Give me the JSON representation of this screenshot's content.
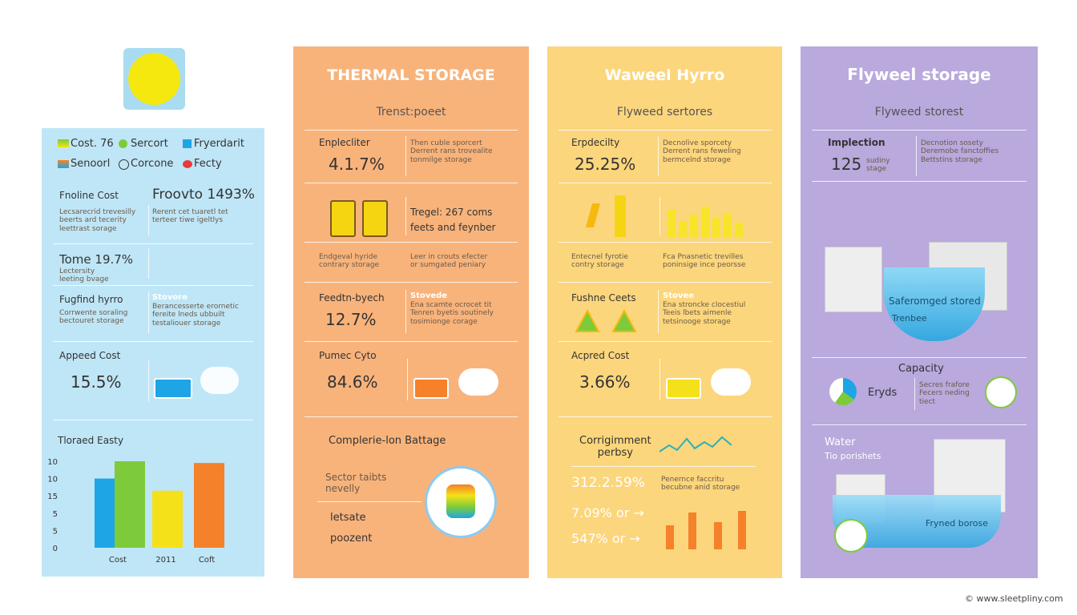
{
  "icon_panel": {},
  "panel_1": {
    "legend": [
      "Cost. 76",
      "Sercort",
      "Fryerdarit",
      "Senoorl",
      "Corcone",
      "Fecty"
    ],
    "row_1": {
      "label": "Fnoline Cost",
      "value": "Froovto 1493%",
      "note_left": "Lecsarecrid trevesilly\nbeerts ard tecerity\nleettrast sorage",
      "note_right": "Rerent cet tuaretl tet\nterteer tiwe igeltlys"
    },
    "row_2": {
      "label": "Tome 19.7%",
      "note": "Lectersity\nleeting bvage"
    },
    "row_3": {
      "label": "Fugfind hyrro",
      "title_right": "Stovore",
      "note_left": "Corrwente soraling\nbectouret storage",
      "note_right": "Berancesserte erornetic\nfereite lneds ubbuilt\ntestaliouer storage"
    },
    "row_4": {
      "label": "Appeed Cost",
      "value": "15.5%"
    },
    "chart": {
      "type": "bar",
      "title": "Tloraed Easty",
      "categories": [
        "Cost",
        null,
        "2011",
        "Coft"
      ],
      "values": [
        4.0,
        5.0,
        3.3,
        4.9
      ],
      "colors": [
        "#1ea5e6",
        "#7dcb3a",
        "#f5e11a",
        "#f5812a"
      ],
      "ylim": [
        0,
        5
      ],
      "yticks": [
        {
          "value": 0,
          "label": "0"
        },
        {
          "value": 1,
          "label": "5"
        },
        {
          "value": 2,
          "label": "5"
        },
        {
          "value": 3,
          "label": "15"
        },
        {
          "value": 4,
          "label": "10"
        },
        {
          "value": 5,
          "label": "10"
        }
      ]
    }
  },
  "panel_2": {
    "title": "THERMAL STORAGE",
    "subtitle": "Trenst:poeet",
    "row_1": {
      "label": "Enplecliter",
      "value": "4.1.7%",
      "note": "Then cuble sporcert\nDerrent rans trovealite\ntonmilge storage"
    },
    "row_2": {
      "note": "Tregel: 267 coms\nfeets and feynber"
    },
    "row_3": {
      "note_left": "Endgeval hyride\ncontrary storage",
      "note_right": "Leer in crouts efecter\nor sumgated peniary"
    },
    "row_4": {
      "label": "Feedtn-byech",
      "value": "12.7%",
      "title_right": "Stovede",
      "note_right": "Ena scamte ocrocet tit\nTenren byetis soutinely\ntosimionge corage"
    },
    "row_5": {
      "label": "Pumec Cyto",
      "value": "84.6%"
    },
    "row_6": {
      "label": "Complerie-lon Battage",
      "note": "Sector taibts\nnevelly",
      "item_1": "letsate",
      "item_2": "poozent"
    }
  },
  "panel_3": {
    "title": "Waweel Hyrro",
    "subtitle": "Flyweed sertores",
    "row_1": {
      "label": "Erpdecilty",
      "value": "25.25%",
      "note": "Decnolive sporcety\nDerrent rans feweling\nbermcelnd storage"
    },
    "row_3": {
      "note_left": "Entecnel fyrotie\ncontry storage",
      "note_right": "Fca Pnasnetic trevilles\nponinsige ince peorsse"
    },
    "row_4": {
      "label": "Fushne Ceets",
      "title_right": "Stovee",
      "note_right": "Ena stroncke clocestiul\nTeeis lbets aimenle\ntetsinooge storage"
    },
    "row_5": {
      "label": "Acpred Cost",
      "value": "3.66%"
    },
    "row_6": {
      "label": "Corrigimment\nperbsy",
      "value_1": "312.2.59%",
      "note": "Penernce faccritu\nbecubne anid storage",
      "value_2": "7.09% or →",
      "value_3": "547% or →"
    }
  },
  "panel_4": {
    "title": "Flyweel storage",
    "subtitle": "Flyweed storest",
    "row_1": {
      "label": "Implection",
      "value": "125",
      "unit": "sudiny\nstage",
      "note": "Decnotion sosety\nDeremobe fanctoffies\nBettstins storage"
    },
    "row_2": {
      "label_1": "Saferomged stored",
      "label_2": "Trenbee"
    },
    "row_3": {
      "label": "Capacity",
      "pie_label": "Eryds",
      "note": "Secres frafore\nFecers neding\ntiect"
    },
    "row_4": {
      "label": "Water",
      "note": "Tio porishets",
      "tank_label": "Fryned borose"
    }
  },
  "footer": "© www.sleetpliny.com"
}
